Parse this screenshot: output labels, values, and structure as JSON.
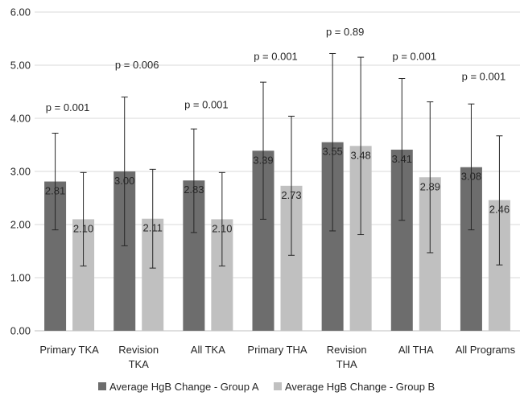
{
  "chart_data": {
    "type": "bar",
    "categories": [
      [
        "Primary TKA"
      ],
      [
        "Revision",
        "TKA"
      ],
      [
        "All TKA"
      ],
      [
        "Primary THA"
      ],
      [
        "Revision",
        "THA"
      ],
      [
        "All THA"
      ],
      [
        "All Programs"
      ]
    ],
    "series": [
      {
        "name": "Average HgB Change - Group A",
        "color": "#6d6d6d",
        "values": [
          2.81,
          3.0,
          2.83,
          3.39,
          3.55,
          3.41,
          3.08
        ],
        "value_labels": [
          "2.81",
          "3.00",
          "2.83",
          "3.39",
          "3.55",
          "3.41",
          "3.08"
        ],
        "error_low": [
          1.9,
          1.6,
          1.85,
          2.1,
          1.88,
          2.08,
          1.9
        ],
        "error_high": [
          3.72,
          4.4,
          3.8,
          4.68,
          5.22,
          4.75,
          4.27
        ]
      },
      {
        "name": "Average HgB Change - Group B",
        "color": "#c0c0c0",
        "values": [
          2.1,
          2.11,
          2.1,
          2.73,
          3.48,
          2.89,
          2.46
        ],
        "value_labels": [
          "2.10",
          "2.11",
          "2.10",
          "2.73",
          "3.48",
          "2.89",
          "2.46"
        ],
        "error_low": [
          1.22,
          1.18,
          1.22,
          1.42,
          1.81,
          1.47,
          1.24
        ],
        "error_high": [
          2.98,
          3.04,
          2.98,
          4.04,
          5.15,
          4.31,
          3.67
        ]
      }
    ],
    "annotations": [
      {
        "text": "p = 0.001",
        "y": 4.14
      },
      {
        "text": "p = 0.006",
        "y": 4.94
      },
      {
        "text": "p = 0.001",
        "y": 4.19
      },
      {
        "text": "p = 0.001",
        "y": 5.1
      },
      {
        "text": "p = 0.89",
        "y": 5.56
      },
      {
        "text": "p = 0.001",
        "y": 5.1
      },
      {
        "text": "p = 0.001",
        "y": 4.72
      }
    ],
    "y_ticks": [
      "0.00",
      "1.00",
      "2.00",
      "3.00",
      "4.00",
      "5.00",
      "6.00"
    ],
    "ylim": [
      0,
      6
    ],
    "grid": true,
    "legend_position": "bottom"
  }
}
